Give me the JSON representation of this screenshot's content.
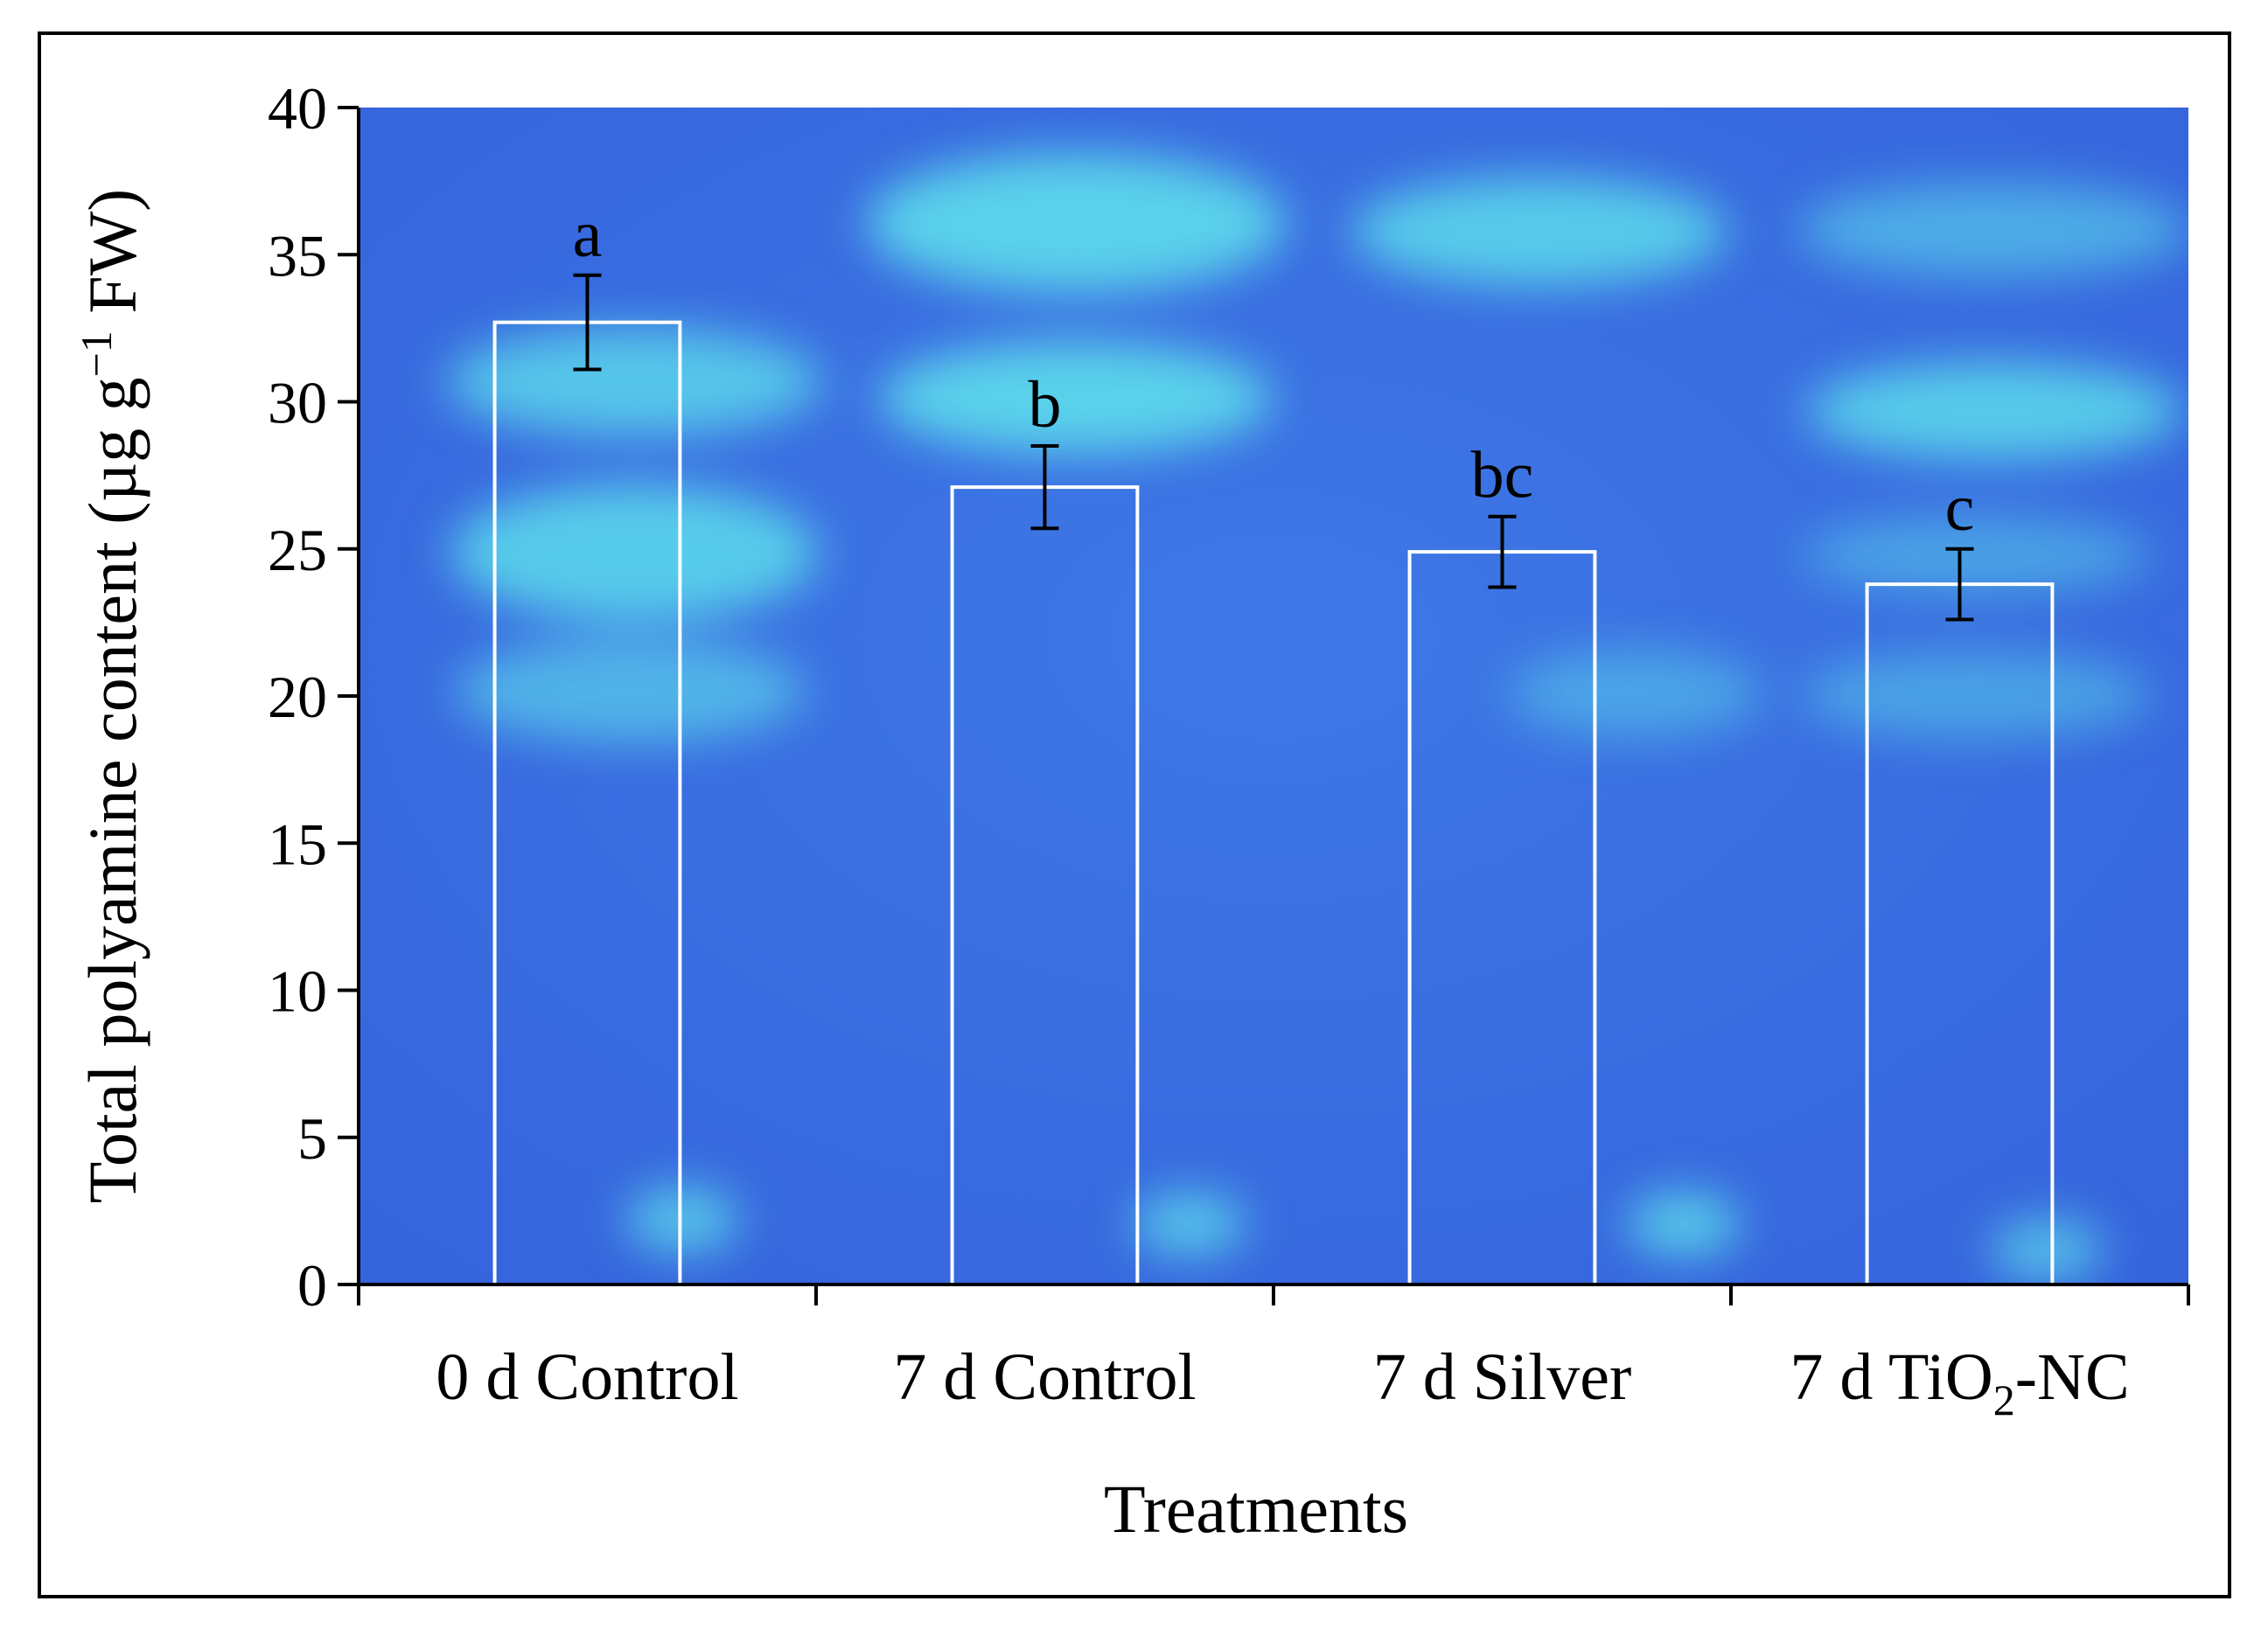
{
  "chart_data": {
    "type": "bar",
    "title": "",
    "xlabel": "Treatments",
    "ylabel": "Total polyamine content (µg g",
    "ylabel_sup": "−1",
    "ylabel_end": " FW)",
    "ylim": [
      0,
      40
    ],
    "yticks": [
      0,
      5,
      10,
      15,
      20,
      25,
      30,
      35,
      40
    ],
    "categories": [
      {
        "pre": "0 d Control",
        "sub": "",
        "post": ""
      },
      {
        "pre": "7 d Control",
        "sub": "",
        "post": ""
      },
      {
        "pre": "7 d Silver",
        "sub": "",
        "post": ""
      },
      {
        "pre": "7 d TiO",
        "sub": "2",
        "post": "-NC"
      }
    ],
    "values": [
      32.7,
      27.1,
      24.9,
      23.8
    ],
    "errors": [
      1.6,
      1.4,
      1.2,
      1.2
    ],
    "significance": [
      "a",
      "b",
      "bc",
      "c"
    ],
    "colors": {
      "plot_background": "#3a6fe0",
      "bar_outline": "#ffffff",
      "spot": "#5fe3ec",
      "axis": "#000000"
    }
  }
}
